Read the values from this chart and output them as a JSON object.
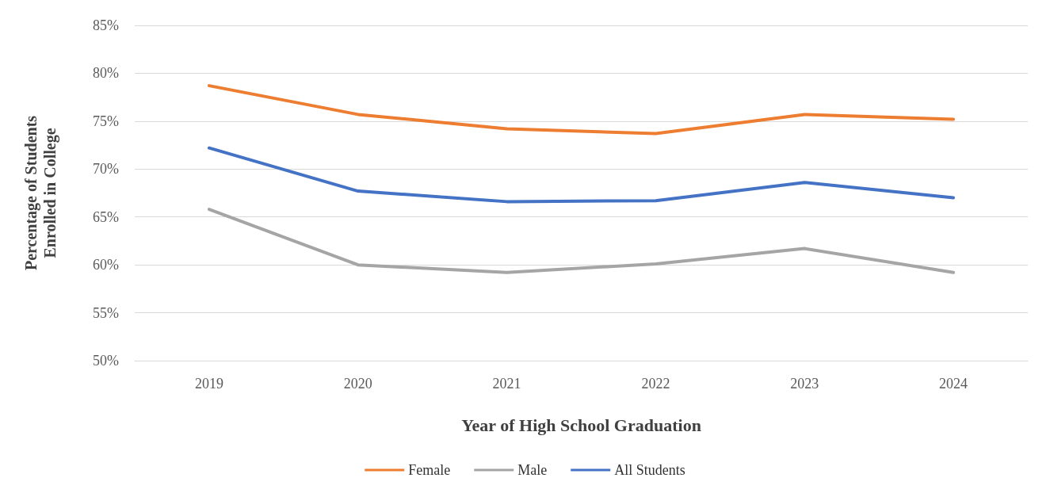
{
  "chart_data": {
    "type": "line",
    "xlabel": "Year of High School Graduation",
    "ylabel": "Percentage of Students\nEnrolled in College",
    "categories": [
      "2019",
      "2020",
      "2021",
      "2022",
      "2023",
      "2024"
    ],
    "series": [
      {
        "name": "Female",
        "color": "#ed7d31",
        "values": [
          78.7,
          75.7,
          74.2,
          73.7,
          75.7,
          75.2
        ]
      },
      {
        "name": "Male",
        "color": "#a5a5a5",
        "values": [
          65.8,
          60.0,
          59.2,
          60.1,
          61.7,
          59.2
        ]
      },
      {
        "name": "All Students",
        "color": "#4472c4",
        "values": [
          72.2,
          67.7,
          66.6,
          66.7,
          68.6,
          67.0
        ]
      }
    ],
    "ylim": [
      50,
      85
    ],
    "yticks": [
      {
        "value": 50,
        "label": "50%"
      },
      {
        "value": 55,
        "label": "55%"
      },
      {
        "value": 60,
        "label": "60%"
      },
      {
        "value": 65,
        "label": "65%"
      },
      {
        "value": 70,
        "label": "70%"
      },
      {
        "value": 75,
        "label": "75%"
      },
      {
        "value": 80,
        "label": "80%"
      },
      {
        "value": 85,
        "label": "85%"
      }
    ],
    "grid": "y",
    "legend": "bottom",
    "marker": "none",
    "line_style": "solid"
  }
}
